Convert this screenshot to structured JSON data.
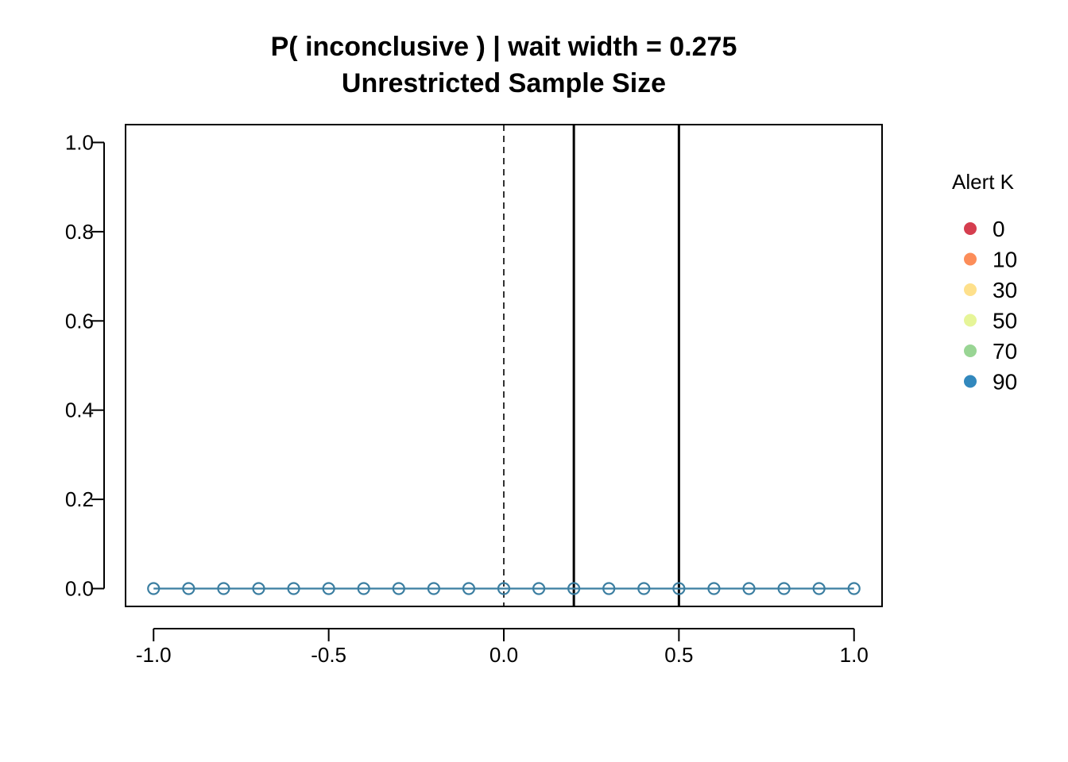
{
  "chart_data": {
    "type": "line",
    "title": "P( inconclusive ) | wait width = 0.275",
    "subtitle": "Unrestricted Sample Size",
    "xlabel": "",
    "ylabel": "",
    "xlim": [
      -1.08,
      1.08
    ],
    "ylim": [
      -0.04,
      1.04
    ],
    "x_ticks": [
      -1.0,
      -0.5,
      0.0,
      0.5,
      1.0
    ],
    "x_tick_labels": [
      "-1.0",
      "-0.5",
      "0.0",
      "0.5",
      "1.0"
    ],
    "y_ticks": [
      0.0,
      0.2,
      0.4,
      0.6,
      0.8,
      1.0
    ],
    "y_tick_labels": [
      "0.0",
      "0.2",
      "0.4",
      "0.6",
      "0.8",
      "1.0"
    ],
    "grid": false,
    "reference_lines": [
      {
        "x": 0.0,
        "style": "dashed"
      },
      {
        "x": 0.2,
        "style": "solid"
      },
      {
        "x": 0.5,
        "style": "solid"
      }
    ],
    "series": [
      {
        "color": "#3b7ea1",
        "marker": "open-circle",
        "x": [
          -1.0,
          -0.9,
          -0.8,
          -0.7,
          -0.6,
          -0.5,
          -0.4,
          -0.3,
          -0.2,
          -0.1,
          0.0,
          0.1,
          0.2,
          0.3,
          0.4,
          0.5,
          0.6,
          0.7,
          0.8,
          0.9,
          1.0
        ],
        "y": [
          0,
          0,
          0,
          0,
          0,
          0,
          0,
          0,
          0,
          0,
          0,
          0,
          0,
          0,
          0,
          0,
          0,
          0,
          0,
          0,
          0
        ]
      }
    ],
    "legend": {
      "title": "Alert K",
      "placement": "right",
      "entries": [
        {
          "label": "0",
          "color": "#d53e4f"
        },
        {
          "label": "10",
          "color": "#fc8d59"
        },
        {
          "label": "30",
          "color": "#fee08b"
        },
        {
          "label": "50",
          "color": "#e6f598"
        },
        {
          "label": "70",
          "color": "#99d594"
        },
        {
          "label": "90",
          "color": "#3288bd"
        }
      ]
    }
  }
}
